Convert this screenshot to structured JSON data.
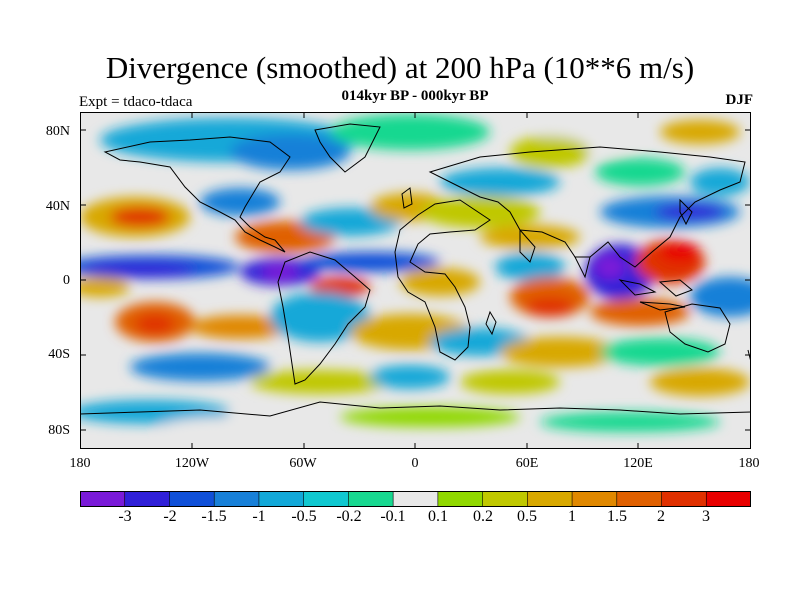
{
  "title": "Divergence (smoothed) at 200 hPa (10**6 m/s)",
  "subtitle": "014kyr BP - 000kyr BP",
  "left_label": "Expt = tdaco-tdaca",
  "right_label": "DJF",
  "lat_labels": [
    "80N",
    "40N",
    "0",
    "40S",
    "80S"
  ],
  "lon_labels": [
    "180",
    "120W",
    "60W",
    "0",
    "60E",
    "120E",
    "180"
  ],
  "colorbar": {
    "colors": [
      "#7a1ad8",
      "#3020d8",
      "#1050d8",
      "#1880d8",
      "#12a8d8",
      "#10c8d0",
      "#18d890",
      "#e8e8e8",
      "#90d800",
      "#c0c800",
      "#d8a800",
      "#e08800",
      "#e06000",
      "#e03000",
      "#e80000"
    ],
    "labels": [
      "-3",
      "-2",
      "-1.5",
      "-1",
      "-0.5",
      "-0.2",
      "-0.1",
      "0.1",
      "0.2",
      "0.5",
      "1",
      "1.5",
      "2",
      "3"
    ]
  }
}
